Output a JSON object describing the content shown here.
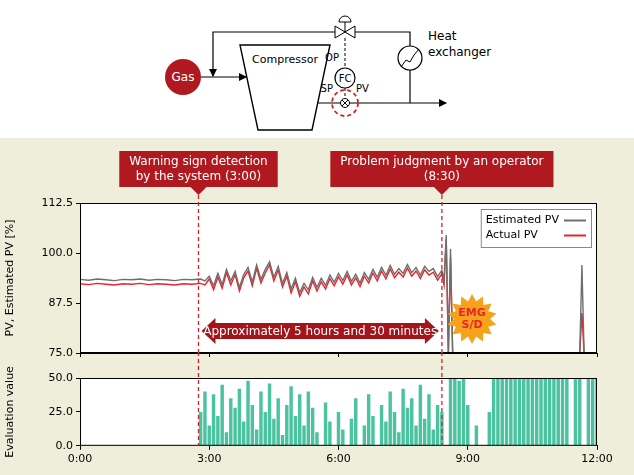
{
  "diagram": {
    "source": "Gas",
    "compressor": "Compressor",
    "heat_exchanger": "Heat exchanger",
    "controller": "FC",
    "signals": {
      "output": "OP",
      "setpoint": "SP",
      "measurement": "PV"
    }
  },
  "chart_data": [
    {
      "type": "line",
      "ylabel": "PV, Estimated PV [%]",
      "xlim": [
        0,
        12
      ],
      "xticks": [
        {
          "value": 0,
          "label": "0:00"
        },
        {
          "value": 3,
          "label": "3:00"
        },
        {
          "value": 6,
          "label": "6:00"
        },
        {
          "value": 9,
          "label": "9:00"
        },
        {
          "value": 12,
          "label": "12:00"
        }
      ],
      "ylim": [
        75,
        112.5
      ],
      "yticks": [
        {
          "value": 75,
          "label": "75.0"
        },
        {
          "value": 87.5,
          "label": "87.5"
        },
        {
          "value": 100,
          "label": "100.0"
        },
        {
          "value": 112.5,
          "label": "112.5"
        }
      ],
      "tick_labels": "y",
      "grid": false,
      "legend": "upper right",
      "x": [
        0,
        0.2,
        0.4,
        0.6,
        0.8,
        1,
        1.2,
        1.4,
        1.6,
        1.8,
        2,
        2.2,
        2.4,
        2.6,
        2.8,
        2.9,
        3,
        3.1,
        3.2,
        3.3,
        3.4,
        3.5,
        3.6,
        3.7,
        3.8,
        3.9,
        4,
        4.1,
        4.2,
        4.3,
        4.4,
        4.5,
        4.6,
        4.7,
        4.8,
        4.9,
        5,
        5.1,
        5.2,
        5.3,
        5.4,
        5.5,
        5.6,
        5.7,
        5.8,
        5.9,
        6,
        6.1,
        6.2,
        6.3,
        6.4,
        6.5,
        6.6,
        6.7,
        6.8,
        6.9,
        7,
        7.1,
        7.2,
        7.3,
        7.4,
        7.5,
        7.6,
        7.7,
        7.8,
        7.9,
        8,
        8.1,
        8.2,
        8.3,
        8.4,
        8.45,
        8.5,
        8.55,
        8.6,
        8.65,
        8.7,
        11.6,
        11.65,
        11.7
      ],
      "series": [
        {
          "name": "Estimated PV",
          "color": "#6e6e6e",
          "line_style": "solid",
          "values": [
            93.4,
            93.2,
            93.5,
            93.3,
            93.1,
            93.4,
            93.3,
            93.5,
            93.2,
            93.4,
            93.3,
            93.1,
            93.4,
            93.3,
            93.5,
            93.0,
            94.2,
            91.8,
            94.9,
            92.1,
            95.9,
            93.0,
            95.4,
            91.4,
            94.6,
            96.4,
            92.7,
            97.0,
            93.4,
            95.9,
            97.8,
            93.9,
            96.6,
            92.4,
            95.1,
            91.0,
            93.7,
            90.1,
            92.4,
            90.8,
            93.9,
            91.4,
            93.7,
            91.9,
            94.5,
            92.7,
            94.9,
            93.1,
            95.4,
            92.9,
            94.7,
            92.5,
            95.1,
            93.4,
            95.9,
            93.9,
            96.4,
            94.4,
            96.9,
            94.7,
            96.1,
            94.9,
            97.1,
            95.1,
            96.4,
            94.5,
            96.7,
            95.4,
            96.1,
            94.1,
            95.7,
            93.0,
            104.5,
            75,
            101.0,
            75,
            null,
            75,
            97.0,
            75
          ]
        },
        {
          "name": "Actual PV",
          "color": "#e8242b",
          "line_style": "solid",
          "values": [
            92.3,
            92.1,
            92.4,
            92.2,
            92.0,
            92.3,
            92.2,
            92.4,
            92.1,
            92.3,
            92.2,
            92.0,
            92.3,
            92.2,
            92.4,
            92.0,
            93.5,
            90.8,
            94.0,
            91.2,
            95.1,
            92.0,
            94.6,
            90.5,
            93.8,
            95.5,
            91.8,
            96.2,
            92.5,
            95.0,
            97.0,
            93.0,
            95.8,
            91.5,
            94.2,
            90.0,
            92.8,
            89.2,
            91.5,
            89.8,
            93.0,
            90.5,
            92.8,
            91.0,
            93.6,
            91.8,
            94.0,
            92.2,
            94.5,
            92.0,
            93.8,
            91.6,
            94.2,
            92.5,
            95.0,
            93.0,
            95.5,
            93.5,
            96.0,
            93.8,
            95.2,
            94.0,
            96.2,
            94.2,
            95.5,
            93.6,
            95.8,
            94.5,
            95.2,
            93.2,
            94.8,
            92.0,
            103.5,
            75,
            99.0,
            75,
            null,
            75,
            85.0,
            75
          ]
        }
      ],
      "annotations": [
        {
          "type": "banner",
          "text": [
            "Warning sign detection",
            "by the system (3:00)"
          ],
          "x": 2.75
        },
        {
          "type": "banner",
          "text": [
            "Problem judgment by an operator",
            "(8:30)"
          ],
          "x": 8.4
        },
        {
          "type": "span",
          "text": "Approximately 5 hours and 30 minutes",
          "x": [
            2.75,
            8.4
          ],
          "y": 80.5
        },
        {
          "type": "burst",
          "text": [
            "EMG",
            "S/D"
          ],
          "x": 9.1,
          "y": 83.5
        }
      ]
    },
    {
      "type": "bar",
      "ylabel": "Evaluation value",
      "xlim": [
        0,
        12
      ],
      "xticks": [
        {
          "value": 0,
          "label": "0:00"
        },
        {
          "value": 3,
          "label": "3:00"
        },
        {
          "value": 6,
          "label": "6:00"
        },
        {
          "value": 9,
          "label": "9:00"
        },
        {
          "value": 12,
          "label": "12:00"
        }
      ],
      "ylim": [
        0,
        50
      ],
      "yticks": [
        {
          "value": 0,
          "label": "0.0"
        },
        {
          "value": 25,
          "label": "25.0"
        },
        {
          "value": 50,
          "label": "50.0"
        }
      ],
      "grid": false,
      "color": "#4cc3a0",
      "x": [
        2.8,
        2.9,
        3,
        3.1,
        3.2,
        3.3,
        3.4,
        3.5,
        3.6,
        3.7,
        3.8,
        3.9,
        4,
        4.1,
        4.2,
        4.3,
        4.4,
        4.5,
        4.6,
        4.7,
        4.8,
        4.9,
        5,
        5.1,
        5.2,
        5.3,
        5.4,
        5.5,
        5.6,
        5.7,
        5.8,
        5.9,
        6,
        6.1,
        6.2,
        6.3,
        6.4,
        6.5,
        6.6,
        6.7,
        6.8,
        6.9,
        7,
        7.1,
        7.2,
        7.3,
        7.4,
        7.5,
        7.6,
        7.7,
        7.8,
        7.9,
        8,
        8.1,
        8.2,
        8.3,
        8.4,
        8.5,
        8.6,
        8.7,
        8.8,
        8.9,
        9,
        9.1,
        9.2,
        9.3,
        9.4,
        9.5,
        9.6,
        9.7,
        9.8,
        9.9,
        10,
        10.1,
        10.2,
        10.3,
        10.4,
        10.5,
        10.6,
        10.7,
        10.8,
        10.9,
        11,
        11.1,
        11.2,
        11.3,
        11.4,
        11.5,
        11.6,
        11.7,
        11.8,
        11.9,
        12
      ],
      "values": [
        25,
        40,
        15,
        38,
        22,
        45,
        10,
        35,
        28,
        42,
        18,
        48,
        30,
        12,
        40,
        25,
        46,
        20,
        35,
        8,
        30,
        44,
        22,
        38,
        15,
        40,
        28,
        10,
        0,
        32,
        18,
        0,
        25,
        12,
        0,
        20,
        35,
        0,
        15,
        38,
        22,
        0,
        30,
        18,
        40,
        25,
        10,
        42,
        28,
        35,
        15,
        45,
        20,
        38,
        12,
        30,
        25,
        0,
        50,
        50,
        48,
        50,
        30,
        0,
        15,
        0,
        0,
        25,
        50,
        50,
        50,
        50,
        50,
        50,
        50,
        50,
        50,
        50,
        50,
        50,
        50,
        50,
        50,
        50,
        50,
        50,
        0,
        50,
        50,
        0,
        50,
        50,
        50
      ]
    }
  ]
}
